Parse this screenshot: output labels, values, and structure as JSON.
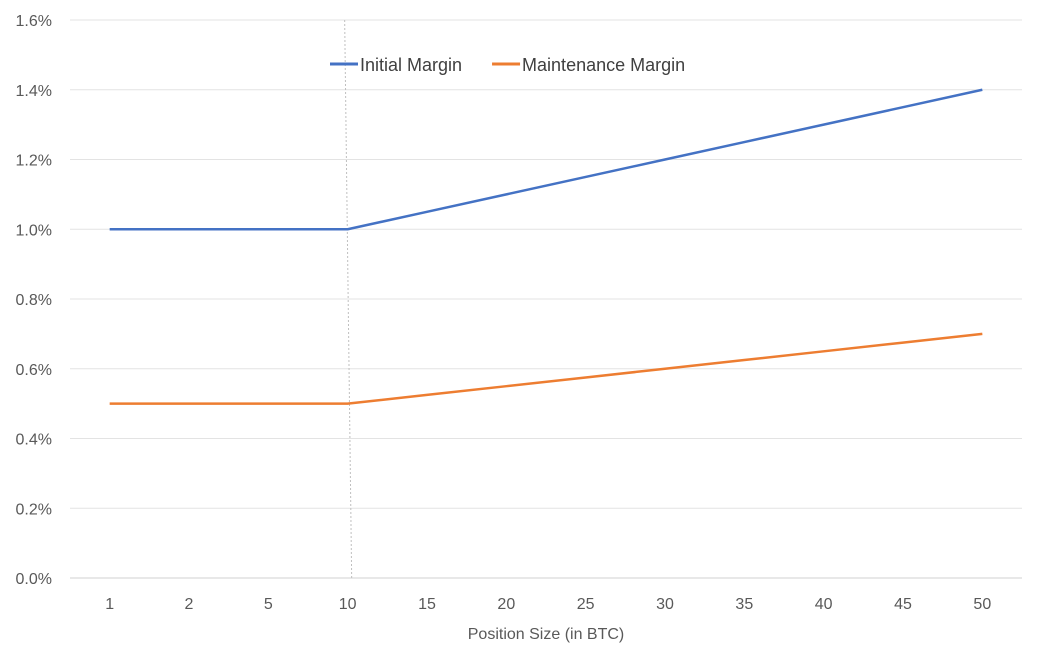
{
  "chart_data": {
    "type": "line",
    "title": "",
    "xlabel": "Position Size (in BTC)",
    "ylabel": "",
    "categories": [
      "1",
      "2",
      "5",
      "10",
      "15",
      "20",
      "25",
      "30",
      "35",
      "40",
      "45",
      "50"
    ],
    "ylim": [
      0,
      1.6
    ],
    "yticks": [
      {
        "value": 0.0,
        "label": "0.0%"
      },
      {
        "value": 0.2,
        "label": "0.2%"
      },
      {
        "value": 0.4,
        "label": "0.4%"
      },
      {
        "value": 0.6,
        "label": "0.6%"
      },
      {
        "value": 0.8,
        "label": "0.8%"
      },
      {
        "value": 1.0,
        "label": "1.0%"
      },
      {
        "value": 1.2,
        "label": "1.2%"
      },
      {
        "value": 1.4,
        "label": "1.4%"
      },
      {
        "value": 1.6,
        "label": "1.6%"
      }
    ],
    "series": [
      {
        "name": "Initial Margin",
        "color": "#4472c4",
        "values": [
          1.0,
          1.0,
          1.0,
          1.0,
          1.05,
          1.1,
          1.15,
          1.2,
          1.25,
          1.3,
          1.35,
          1.4
        ]
      },
      {
        "name": "Maintenance Margin",
        "color": "#ed7d31",
        "values": [
          0.5,
          0.5,
          0.5,
          0.5,
          0.525,
          0.55,
          0.575,
          0.6,
          0.625,
          0.65,
          0.675,
          0.7
        ]
      }
    ],
    "reference_line": {
      "category": "10",
      "style": "dotted"
    },
    "grid": true,
    "legend": "top-center"
  }
}
